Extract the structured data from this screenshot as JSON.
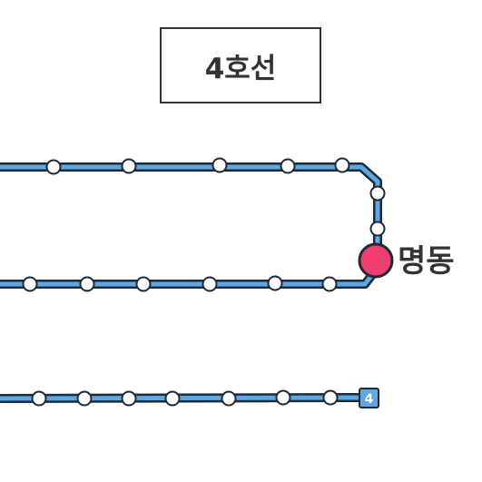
{
  "title": "4호선",
  "highlighted_station": {
    "name": "명동",
    "color": "#ee3d6e"
  },
  "line": {
    "number": "4",
    "color": "#5ba8e5",
    "outline": "#1f2a36"
  },
  "segments": [
    {
      "id": "upper-track",
      "station_count": 7
    },
    {
      "id": "middle-track",
      "station_count": 6
    },
    {
      "id": "lower-track",
      "station_count": 7
    }
  ]
}
